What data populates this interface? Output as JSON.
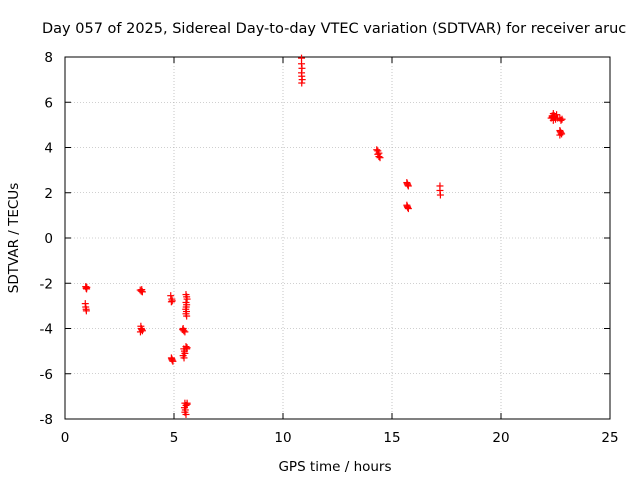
{
  "chart_data": {
    "type": "scatter",
    "title": "Day 057 of 2025, Sidereal Day-to-day VTEC variation (SDTVAR) for receiver aruc",
    "xlabel": "GPS time / hours",
    "ylabel": "SDTVAR / TECUs",
    "xlim": [
      0,
      25
    ],
    "ylim": [
      -8,
      8
    ],
    "xticks": [
      0,
      5,
      10,
      15,
      20,
      25
    ],
    "yticks": [
      -8,
      -6,
      -4,
      -2,
      0,
      2,
      4,
      6,
      8
    ],
    "grid": true,
    "marker": "plus",
    "series": [
      {
        "name": "SDTVAR",
        "color": "#ff0000",
        "points": [
          [
            0.95,
            -2.15
          ],
          [
            0.97,
            -2.22
          ],
          [
            0.99,
            -2.25
          ],
          [
            1.0,
            -2.18
          ],
          [
            0.93,
            -2.9
          ],
          [
            0.95,
            -3.05
          ],
          [
            0.97,
            -3.15
          ],
          [
            0.98,
            -3.22
          ],
          [
            3.45,
            -2.3
          ],
          [
            3.5,
            -2.35
          ],
          [
            3.55,
            -2.38
          ],
          [
            3.52,
            -2.28
          ],
          [
            3.48,
            -3.9
          ],
          [
            3.5,
            -4.0
          ],
          [
            3.52,
            -4.05
          ],
          [
            3.55,
            -4.1
          ],
          [
            3.46,
            -4.15
          ],
          [
            4.85,
            -2.55
          ],
          [
            4.9,
            -2.7
          ],
          [
            4.92,
            -2.78
          ],
          [
            4.88,
            -2.82
          ],
          [
            4.88,
            -5.3
          ],
          [
            4.9,
            -5.35
          ],
          [
            4.92,
            -5.4
          ],
          [
            4.95,
            -5.45
          ],
          [
            5.4,
            -4.05
          ],
          [
            5.45,
            -4.1
          ],
          [
            5.5,
            -4.15
          ],
          [
            5.42,
            -4.0
          ],
          [
            5.45,
            -4.9
          ],
          [
            5.48,
            -5.0
          ],
          [
            5.5,
            -5.1
          ],
          [
            5.42,
            -5.2
          ],
          [
            5.46,
            -5.3
          ],
          [
            5.55,
            -4.8
          ],
          [
            5.6,
            -4.85
          ],
          [
            5.58,
            -4.9
          ],
          [
            5.55,
            -2.5
          ],
          [
            5.58,
            -2.6
          ],
          [
            5.6,
            -2.7
          ],
          [
            5.55,
            -2.85
          ],
          [
            5.58,
            -2.95
          ],
          [
            5.56,
            -3.05
          ],
          [
            5.54,
            -3.15
          ],
          [
            5.57,
            -3.25
          ],
          [
            5.55,
            -3.35
          ],
          [
            5.58,
            -3.45
          ],
          [
            5.5,
            -7.3
          ],
          [
            5.55,
            -7.4
          ],
          [
            5.6,
            -7.35
          ],
          [
            5.48,
            -7.5
          ],
          [
            5.52,
            -7.6
          ],
          [
            5.5,
            -7.7
          ],
          [
            5.55,
            -7.8
          ],
          [
            5.6,
            -7.3
          ],
          [
            10.85,
            7.95
          ],
          [
            10.85,
            7.7
          ],
          [
            10.87,
            7.5
          ],
          [
            10.85,
            7.3
          ],
          [
            10.86,
            7.15
          ],
          [
            10.88,
            7.0
          ],
          [
            10.86,
            6.85
          ],
          [
            14.3,
            3.9
          ],
          [
            14.35,
            3.85
          ],
          [
            14.4,
            3.75
          ],
          [
            14.35,
            3.7
          ],
          [
            14.4,
            3.6
          ],
          [
            14.45,
            3.55
          ],
          [
            15.7,
            2.4
          ],
          [
            15.72,
            2.35
          ],
          [
            15.75,
            2.3
          ],
          [
            15.68,
            2.45
          ],
          [
            15.7,
            1.4
          ],
          [
            15.72,
            1.35
          ],
          [
            15.75,
            1.3
          ],
          [
            15.68,
            1.45
          ],
          [
            17.2,
            2.3
          ],
          [
            17.2,
            2.1
          ],
          [
            17.22,
            1.9
          ],
          [
            22.3,
            5.3
          ],
          [
            22.35,
            5.4
          ],
          [
            22.4,
            5.5
          ],
          [
            22.45,
            5.35
          ],
          [
            22.5,
            5.25
          ],
          [
            22.4,
            5.2
          ],
          [
            22.35,
            5.35
          ],
          [
            22.55,
            5.45
          ],
          [
            22.6,
            5.3
          ],
          [
            22.45,
            5.4
          ],
          [
            22.7,
            5.3
          ],
          [
            22.75,
            5.2
          ],
          [
            22.8,
            5.25
          ],
          [
            22.7,
            4.75
          ],
          [
            22.72,
            4.7
          ],
          [
            22.75,
            4.65
          ],
          [
            22.78,
            4.6
          ],
          [
            22.7,
            4.55
          ]
        ]
      }
    ]
  }
}
